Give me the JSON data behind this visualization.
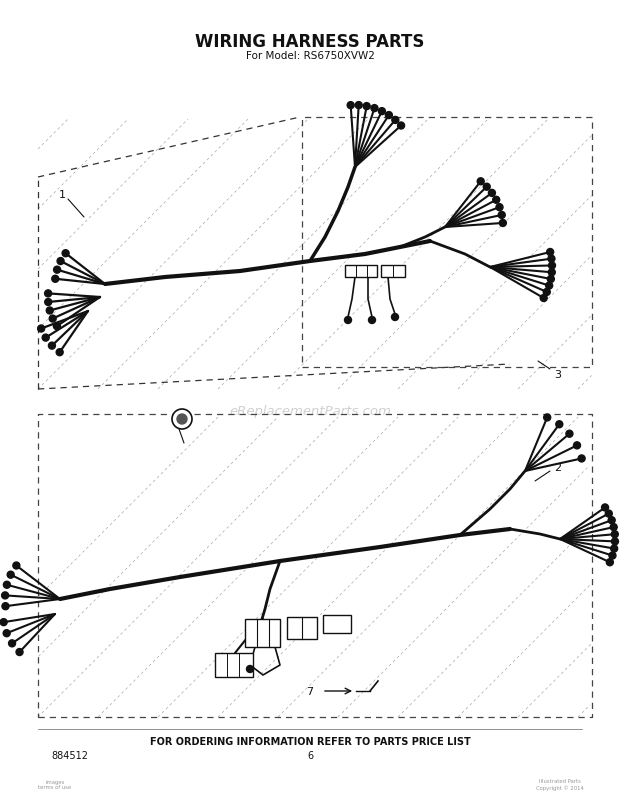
{
  "title": "WIRING HARNESS PARTS",
  "subtitle": "For Model: RS6750XVW2",
  "page_number": "6",
  "part_number": "884512",
  "footer_text": "FOR ORDERING INFORMATION REFER TO PARTS PRICE LIST",
  "watermark": "eReplacementParts.com",
  "background_color": "#ffffff",
  "line_color": "#111111",
  "dashed_line_color": "#333333",
  "title_fontsize": 12,
  "subtitle_fontsize": 7.5,
  "label_fontsize": 8,
  "footer_fontsize": 7
}
